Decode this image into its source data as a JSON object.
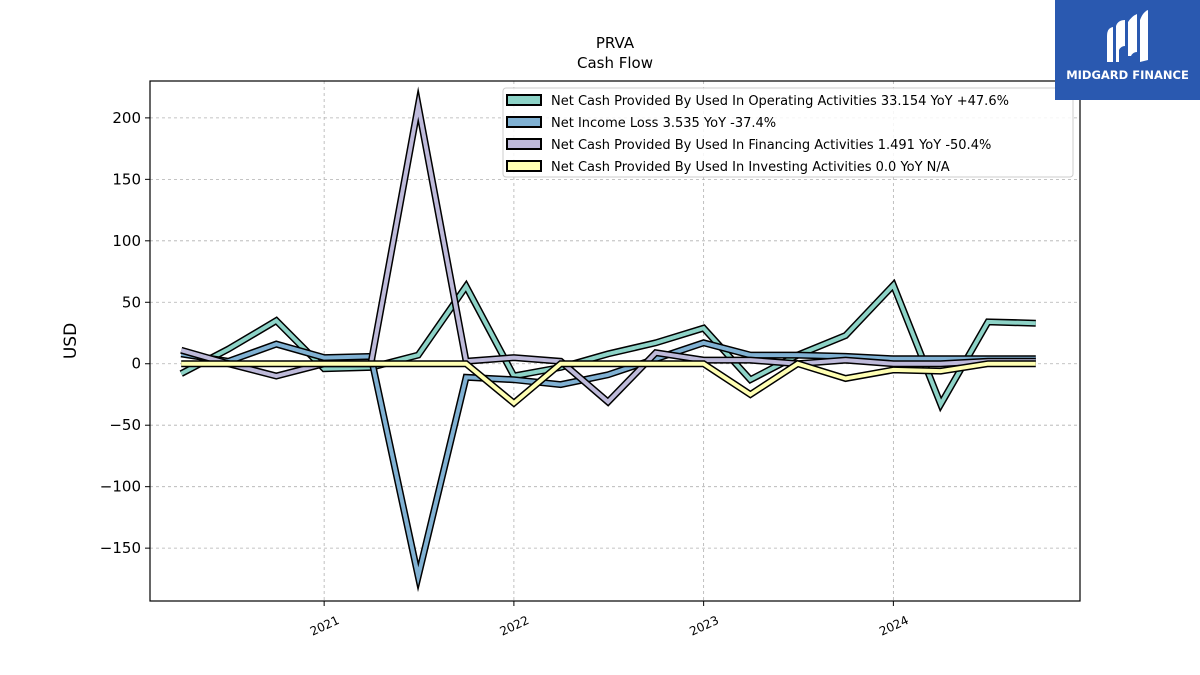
{
  "brand": {
    "name": "MIDGARD FINANCE",
    "color": "#2a59b0"
  },
  "chart_data": {
    "type": "line",
    "title": "PRVA",
    "subtitle": "Cash Flow",
    "ylabel": "USD",
    "xlabel": "",
    "x": [
      "2020-04-01",
      "2020-07-01",
      "2020-10-01",
      "2021-01-01",
      "2021-04-01",
      "2021-07-01",
      "2021-10-01",
      "2022-01-01",
      "2022-04-01",
      "2022-07-01",
      "2022-10-01",
      "2023-01-01",
      "2023-04-01",
      "2023-07-01",
      "2023-10-01",
      "2024-01-01",
      "2024-04-01",
      "2024-07-01",
      "2024-10-01"
    ],
    "xticks": [
      "2021",
      "2022",
      "2023",
      "2024"
    ],
    "yticks": [
      -150,
      -100,
      -50,
      0,
      50,
      100,
      150,
      200
    ],
    "ytick_labels": [
      "−150",
      "−100",
      "−50",
      "0",
      "50",
      "100",
      "150",
      "200"
    ],
    "ylim": [
      -193,
      230
    ],
    "xlim": [
      "2020-02-01",
      "2024-12-25"
    ],
    "grid": true,
    "legend_position": "upper-right",
    "series": [
      {
        "name": "Net Cash Provided By Used In Operating Activities",
        "legend": "Net Cash Provided By Used In Operating Activities  33.154 YoY +47.6%",
        "color": "#8dd3c7",
        "values": [
          -8,
          12,
          35,
          -4,
          -3,
          7,
          63,
          -10,
          -3,
          8,
          17,
          29,
          -13,
          7,
          23,
          64,
          -33,
          34,
          33
        ]
      },
      {
        "name": "Net Income Loss",
        "legend": "Net Income Loss  3.535 YoY -37.4%",
        "color": "#80b1d3",
        "values": [
          8,
          2,
          16,
          5,
          6,
          -173,
          -11,
          -13,
          -17,
          -9,
          4,
          17,
          7,
          7,
          6,
          4,
          4,
          4,
          4
        ]
      },
      {
        "name": "Net Cash Provided By Used In Financing Activities",
        "legend": "Net Cash Provided By Used In Financing Activities  1.491 YoY -50.4%",
        "color": "#bebada",
        "values": [
          11,
          0,
          -10,
          0,
          0,
          210,
          2,
          5,
          2,
          -31,
          9,
          3,
          3,
          0,
          3,
          0,
          0,
          2,
          2
        ]
      },
      {
        "name": "Net Cash Provided By Used In Investing Activities",
        "legend": "Net Cash Provided By Used In Investing Activities  0.0 YoY N/A",
        "color": "#ffffb3",
        "values": [
          0,
          0,
          0,
          0,
          0,
          0,
          0,
          -32,
          0,
          0,
          0,
          0,
          -25,
          0,
          -12,
          -5,
          -6,
          0,
          0
        ]
      }
    ]
  }
}
